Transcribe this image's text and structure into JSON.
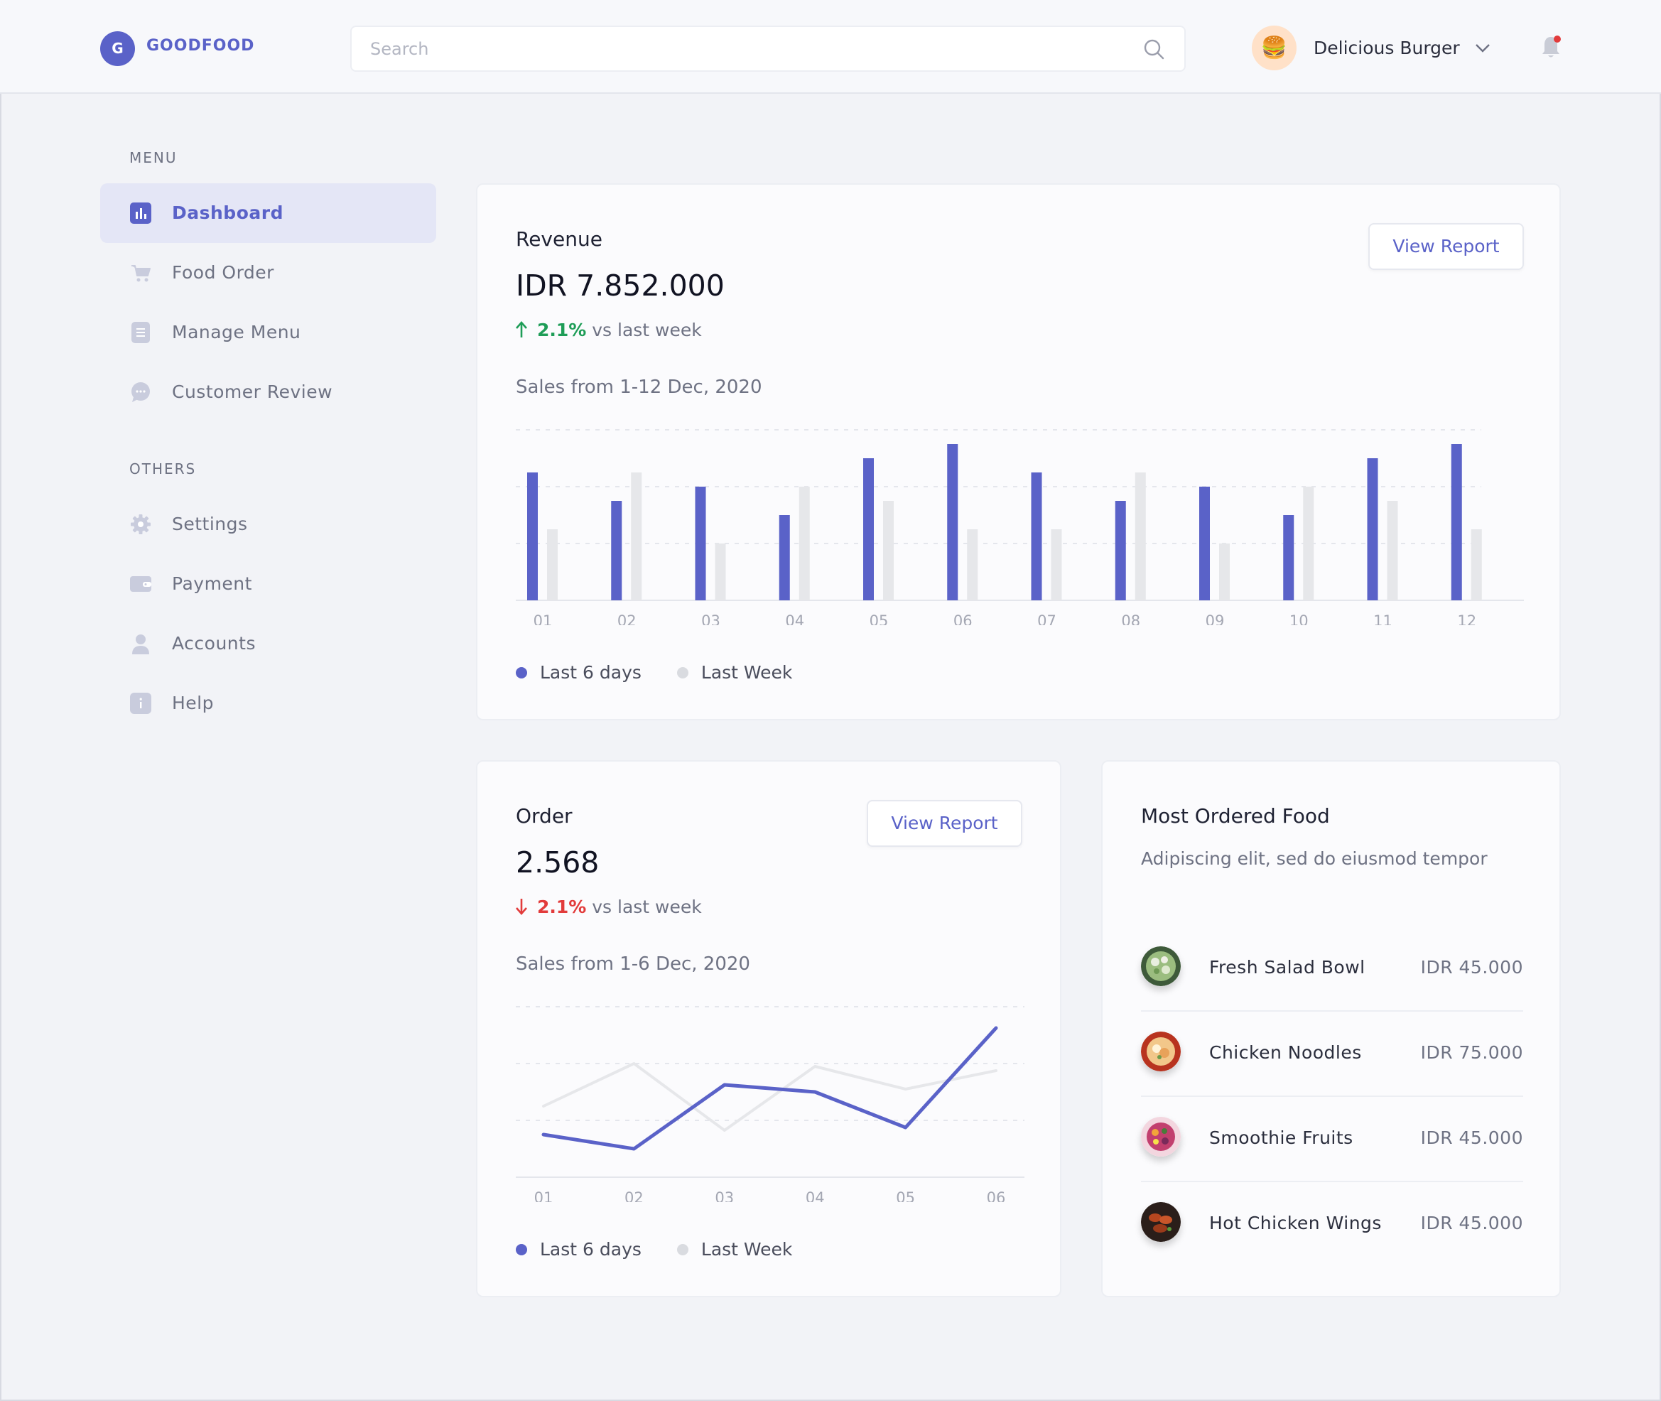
{
  "brand": {
    "logo_letter": "G",
    "name": "GOODFOOD",
    "accent": "#5a62c8"
  },
  "search": {
    "placeholder": "Search",
    "value": ""
  },
  "user": {
    "name": "Delicious Burger",
    "avatar_emoji": "🍔"
  },
  "notifications": {
    "has_unread": true
  },
  "sidebar": {
    "menu_heading": "MENU",
    "menu_items": [
      {
        "label": "Dashboard",
        "icon": "chart-icon",
        "active": true
      },
      {
        "label": "Food Order",
        "icon": "cart-icon"
      },
      {
        "label": "Manage Menu",
        "icon": "list-icon"
      },
      {
        "label": "Customer Review",
        "icon": "chat-icon"
      }
    ],
    "others_heading": "OTHERS",
    "other_items": [
      {
        "label": "Settings",
        "icon": "gear-icon"
      },
      {
        "label": "Payment",
        "icon": "wallet-icon"
      },
      {
        "label": "Accounts",
        "icon": "user-icon"
      },
      {
        "label": "Help",
        "icon": "info-icon"
      }
    ]
  },
  "revenue": {
    "title": "Revenue",
    "value": "IDR 7.852.000",
    "change_pct": "2.1%",
    "change_text": "vs last week",
    "direction": "up",
    "subtitle": "Sales from 1-12 Dec, 2020",
    "button": "View Report",
    "legend": [
      "Last 6 days",
      "Last Week"
    ]
  },
  "order": {
    "title": "Order",
    "value": "2.568",
    "change_pct": "2.1%",
    "change_text": "vs last week",
    "direction": "down",
    "subtitle": "Sales from 1-6 Dec, 2020",
    "button": "View Report",
    "legend": [
      "Last 6 days",
      "Last Week"
    ]
  },
  "most_ordered": {
    "title": "Most Ordered Food",
    "subtitle": "Adipiscing elit, sed do eiusmod tempor",
    "items": [
      {
        "name": "Fresh Salad Bowl",
        "price": "IDR 45.000",
        "color": "#7a9a6a"
      },
      {
        "name": "Chicken Noodles",
        "price": "IDR 75.000",
        "color": "#c8502f"
      },
      {
        "name": "Smoothie Fruits",
        "price": "IDR 45.000",
        "color": "#c84a7a"
      },
      {
        "name": "Hot Chicken Wings",
        "price": "IDR 45.000",
        "color": "#8a3a22"
      }
    ]
  },
  "colors": {
    "primary": "#5a62c8",
    "secondary": "#e6e7ea",
    "up": "#1e9d57",
    "down": "#e23b3b"
  },
  "chart_data": [
    {
      "type": "bar",
      "categories": [
        "01",
        "02",
        "03",
        "04",
        "05",
        "06",
        "07",
        "08",
        "09",
        "10",
        "11",
        "12"
      ],
      "series": [
        {
          "name": "Last 6 days",
          "color": "#5a62c8",
          "values": [
            90,
            70,
            80,
            60,
            100,
            110,
            90,
            70,
            80,
            60,
            100,
            110
          ]
        },
        {
          "name": "Last Week",
          "color": "#e6e7ea",
          "values": [
            50,
            90,
            40,
            80,
            70,
            50,
            50,
            90,
            40,
            80,
            70,
            50
          ]
        }
      ],
      "ylim": [
        0,
        120
      ],
      "grid": true,
      "legend": "bottom-left"
    },
    {
      "type": "line",
      "categories": [
        "01",
        "02",
        "03",
        "04",
        "05",
        "06"
      ],
      "series": [
        {
          "name": "Last 6 days",
          "color": "#5a62c8",
          "values": [
            30,
            20,
            65,
            60,
            35,
            105
          ]
        },
        {
          "name": "Last Week",
          "color": "#e6e7ea",
          "values": [
            50,
            80,
            33,
            78,
            62,
            75
          ]
        }
      ],
      "ylim": [
        0,
        120
      ],
      "grid": true,
      "legend": "bottom-left"
    }
  ]
}
